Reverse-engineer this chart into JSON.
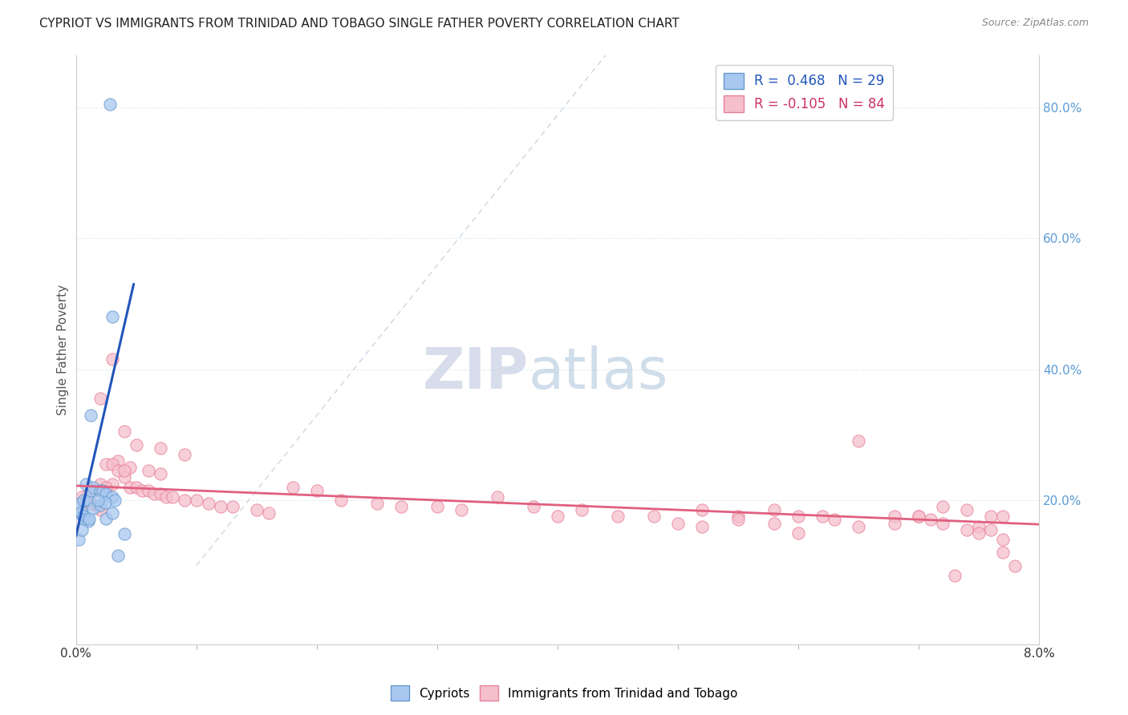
{
  "title": "CYPRIOT VS IMMIGRANTS FROM TRINIDAD AND TOBAGO SINGLE FATHER POVERTY CORRELATION CHART",
  "source": "Source: ZipAtlas.com",
  "ylabel": "Single Father Poverty",
  "watermark_zip": "ZIP",
  "watermark_atlas": "atlas",
  "xlim": [
    0.0,
    0.08
  ],
  "ylim": [
    -0.02,
    0.88
  ],
  "cypriot_x": [
    0.0028,
    0.0012,
    0.0008,
    0.0003,
    0.0005,
    0.0006,
    0.001,
    0.0012,
    0.0014,
    0.002,
    0.0022,
    0.0025,
    0.003,
    0.0032,
    0.0004,
    0.0006,
    0.0007,
    0.001,
    0.0011,
    0.0014,
    0.002,
    0.0024,
    0.0025,
    0.003,
    0.0035,
    0.004,
    0.0002,
    0.003,
    0.0018,
    0.0005
  ],
  "cypriot_y": [
    0.805,
    0.33,
    0.225,
    0.195,
    0.178,
    0.2,
    0.2,
    0.215,
    0.22,
    0.215,
    0.215,
    0.21,
    0.205,
    0.2,
    0.182,
    0.175,
    0.17,
    0.168,
    0.172,
    0.188,
    0.192,
    0.196,
    0.172,
    0.18,
    0.115,
    0.148,
    0.14,
    0.48,
    0.2,
    0.155
  ],
  "trinidad_x": [
    0.003,
    0.002,
    0.004,
    0.005,
    0.007,
    0.009,
    0.0035,
    0.0045,
    0.006,
    0.007,
    0.004,
    0.003,
    0.002,
    0.0025,
    0.0015,
    0.001,
    0.0005,
    0.0008,
    0.0012,
    0.0018,
    0.002,
    0.0025,
    0.003,
    0.0035,
    0.004,
    0.0045,
    0.005,
    0.0055,
    0.006,
    0.0065,
    0.007,
    0.0075,
    0.008,
    0.009,
    0.01,
    0.011,
    0.012,
    0.013,
    0.015,
    0.016,
    0.018,
    0.02,
    0.022,
    0.025,
    0.027,
    0.03,
    0.032,
    0.035,
    0.038,
    0.04,
    0.042,
    0.045,
    0.048,
    0.05,
    0.052,
    0.055,
    0.058,
    0.06,
    0.062,
    0.065,
    0.068,
    0.07,
    0.072,
    0.074,
    0.075,
    0.076,
    0.077,
    0.078,
    0.077,
    0.077,
    0.076,
    0.075,
    0.074,
    0.073,
    0.072,
    0.071,
    0.07,
    0.068,
    0.065,
    0.063,
    0.06,
    0.058,
    0.055,
    0.052
  ],
  "trinidad_y": [
    0.415,
    0.355,
    0.305,
    0.285,
    0.28,
    0.27,
    0.26,
    0.25,
    0.245,
    0.24,
    0.235,
    0.225,
    0.225,
    0.22,
    0.215,
    0.21,
    0.205,
    0.2,
    0.195,
    0.19,
    0.185,
    0.255,
    0.255,
    0.245,
    0.245,
    0.22,
    0.22,
    0.215,
    0.215,
    0.21,
    0.21,
    0.205,
    0.205,
    0.2,
    0.2,
    0.195,
    0.19,
    0.19,
    0.185,
    0.18,
    0.22,
    0.215,
    0.2,
    0.195,
    0.19,
    0.19,
    0.185,
    0.205,
    0.19,
    0.175,
    0.185,
    0.175,
    0.175,
    0.165,
    0.185,
    0.175,
    0.185,
    0.15,
    0.175,
    0.29,
    0.175,
    0.175,
    0.165,
    0.155,
    0.16,
    0.175,
    0.14,
    0.1,
    0.12,
    0.175,
    0.155,
    0.15,
    0.185,
    0.085,
    0.19,
    0.17,
    0.175,
    0.165,
    0.16,
    0.17,
    0.175,
    0.165,
    0.17,
    0.16
  ],
  "blue_trend_x": [
    0.0,
    0.0048
  ],
  "blue_trend_y": [
    0.145,
    0.53
  ],
  "pink_trend_x": [
    0.0,
    0.08
  ],
  "pink_trend_y": [
    0.222,
    0.163
  ],
  "dashed_line_x": [
    0.01,
    0.044
  ],
  "dashed_line_y": [
    0.1,
    0.88
  ],
  "background_color": "#ffffff",
  "grid_color": "#e8eef5",
  "title_color": "#222222",
  "right_axis_color": "#5b9bd5",
  "scatter_blue_face": "#a8c8f0",
  "scatter_blue_edge": "#6699cc",
  "scatter_pink_face": "#f5bfcc",
  "scatter_pink_edge": "#e88099"
}
